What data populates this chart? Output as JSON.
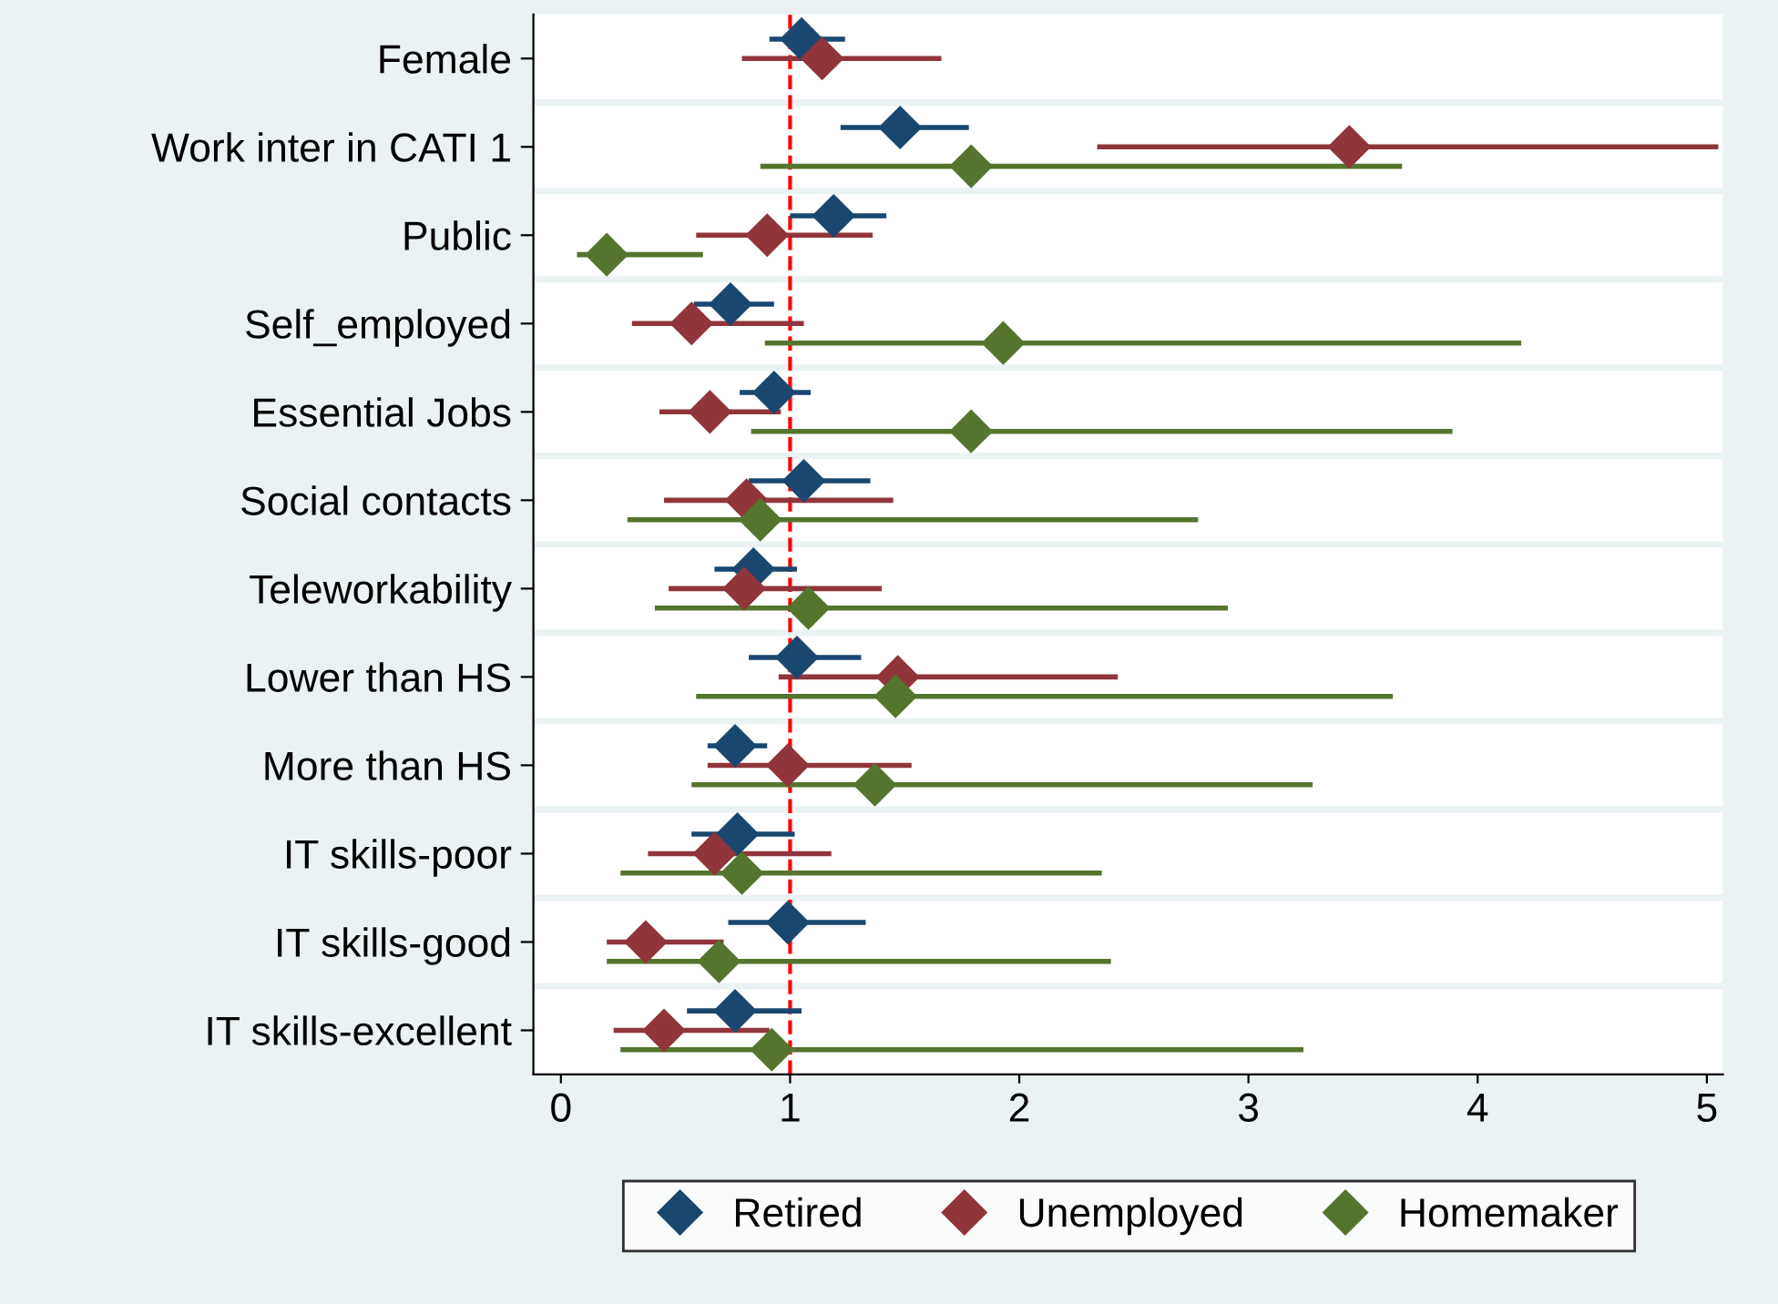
{
  "chart_data": {
    "type": "scatter",
    "orientation": "horizontal",
    "marker": "diamond",
    "categories": [
      "Female",
      "Work inter in CATI 1",
      "Public",
      "Self_employed",
      "Essential Jobs",
      "Social contacts",
      "Teleworkability",
      "Lower than HS",
      "More than HS",
      "IT skills-poor",
      "IT skills-good",
      "IT skills-excellent"
    ],
    "series": [
      {
        "name": "Retired",
        "color": "#1a476f",
        "values": [
          1.05,
          1.48,
          1.19,
          0.74,
          0.93,
          1.06,
          0.84,
          1.03,
          0.76,
          0.77,
          0.99,
          0.76
        ],
        "errors": [
          [
            0.91,
            1.24
          ],
          [
            1.22,
            1.78
          ],
          [
            1.0,
            1.42
          ],
          [
            0.58,
            0.93
          ],
          [
            0.78,
            1.09
          ],
          [
            0.82,
            1.35
          ],
          [
            0.67,
            1.03
          ],
          [
            0.82,
            1.31
          ],
          [
            0.64,
            0.9
          ],
          [
            0.57,
            1.02
          ],
          [
            0.73,
            1.33
          ],
          [
            0.55,
            1.05
          ]
        ]
      },
      {
        "name": "Unemployed",
        "color": "#90353b",
        "values": [
          1.14,
          3.44,
          0.9,
          0.57,
          0.65,
          0.81,
          0.8,
          1.47,
          0.99,
          0.67,
          0.37,
          0.45
        ],
        "errors": [
          [
            0.79,
            1.66
          ],
          [
            2.34,
            5.05
          ],
          [
            0.59,
            1.36
          ],
          [
            0.31,
            1.06
          ],
          [
            0.43,
            0.96
          ],
          [
            0.45,
            1.45
          ],
          [
            0.47,
            1.4
          ],
          [
            0.95,
            2.43
          ],
          [
            0.64,
            1.53
          ],
          [
            0.38,
            1.18
          ],
          [
            0.2,
            0.71
          ],
          [
            0.23,
            0.91
          ]
        ]
      },
      {
        "name": "Homemaker",
        "color": "#55752f",
        "values": [
          null,
          1.79,
          0.2,
          1.93,
          1.79,
          0.87,
          1.08,
          1.46,
          1.37,
          0.79,
          0.69,
          0.92
        ],
        "errors": [
          null,
          [
            0.87,
            3.67
          ],
          [
            0.07,
            0.62
          ],
          [
            0.89,
            4.19
          ],
          [
            0.83,
            3.89
          ],
          [
            0.29,
            2.78
          ],
          [
            0.41,
            2.91
          ],
          [
            0.59,
            3.63
          ],
          [
            0.57,
            3.28
          ],
          [
            0.26,
            2.36
          ],
          [
            0.2,
            2.4
          ],
          [
            0.26,
            3.24
          ]
        ]
      }
    ],
    "xlim": [
      -0.12,
      5.07
    ],
    "xticks": [
      0,
      1,
      2,
      3,
      4,
      5
    ],
    "ref_lines": [
      {
        "axis": "x",
        "value": 1,
        "color": "#ff0000",
        "line_style": "dashed"
      }
    ],
    "grid": true,
    "legend": "bottom"
  }
}
